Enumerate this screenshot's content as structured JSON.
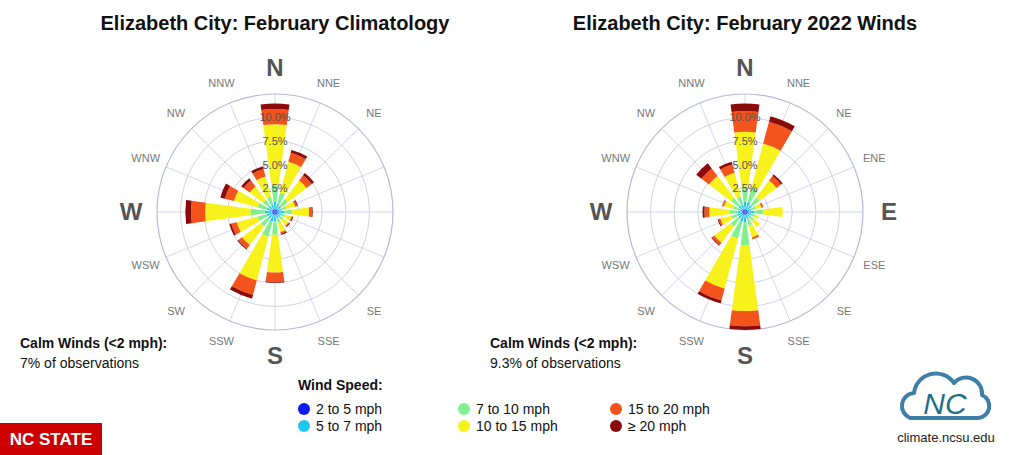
{
  "chart_data": [
    {
      "type": "wind_rose",
      "title": "Elizabeth City: February Climatology",
      "categories": [
        "N",
        "NNE",
        "NE",
        null,
        null,
        null,
        "SE",
        "SSE",
        "S",
        "SSW",
        "SW",
        "WSW",
        "W",
        "WNW",
        "NW",
        "NNW"
      ],
      "ylim": [
        0,
        12.5
      ],
      "yticks": [
        {
          "value": 2.5,
          "label": "2.5%"
        },
        {
          "value": 5,
          "label": "5.0%"
        },
        {
          "value": 7.5,
          "label": "7.5%"
        },
        {
          "value": 10,
          "label": "10.0%"
        }
      ],
      "grid": true,
      "stacked": true,
      "legend": "bottom",
      "legend_title": "Wind Speed:",
      "annotations": [
        "Calm Winds (<2 mph):",
        "7% of observations"
      ],
      "series": [
        {
          "name": "2 to 5 mph",
          "color": "#0a1cf2",
          "values": [
            0.3,
            0.3,
            0.3,
            0.3,
            0.4,
            0.3,
            0.3,
            0.3,
            0.3,
            0.3,
            0.3,
            0.3,
            0.3,
            0.3,
            0.3,
            0.3
          ]
        },
        {
          "name": "5 to 7 mph",
          "color": "#1ec8f0",
          "values": [
            0.8,
            0.6,
            0.5,
            0.4,
            0.6,
            0.4,
            0.4,
            0.4,
            0.7,
            0.8,
            0.6,
            0.6,
            0.8,
            0.6,
            0.5,
            0.5
          ]
        },
        {
          "name": "7 to 10 mph",
          "color": "#80f08e",
          "values": [
            1.7,
            1.2,
            0.9,
            0.5,
            0.8,
            0.4,
            0.4,
            0.5,
            1.4,
            1.6,
            1.0,
            1.0,
            1.5,
            1.0,
            0.8,
            0.9
          ]
        },
        {
          "name": "10 to 15 mph",
          "color": "#f8f21c",
          "values": [
            6.5,
            3.4,
            2.5,
            1.0,
            1.8,
            0.7,
            0.7,
            1.0,
            4.0,
            4.8,
            2.5,
            2.3,
            4.8,
            2.6,
            1.8,
            2.2
          ]
        },
        {
          "name": "15 to 20 mph",
          "color": "#f4531c",
          "values": [
            1.6,
            1.0,
            0.7,
            0.2,
            0.3,
            0.1,
            0.1,
            0.2,
            1.0,
            1.6,
            0.5,
            0.6,
            1.5,
            1.0,
            0.8,
            0.8
          ]
        },
        {
          "name": "≥ 20 mph",
          "color": "#8b0a0a",
          "values": [
            0.6,
            0.3,
            0.3,
            0.1,
            0.1,
            0.1,
            0.1,
            0.1,
            0.1,
            0.4,
            0.1,
            0.2,
            0.6,
            0.5,
            0.3,
            0.3
          ]
        }
      ]
    },
    {
      "type": "wind_rose",
      "title": "Elizabeth City: February 2022 Winds",
      "categories": [
        "N",
        "NNE",
        "NE",
        "ENE",
        "E",
        "ESE",
        "SE",
        "SSE",
        "S",
        "SSW",
        "SW",
        "WSW",
        "W",
        "WNW",
        "NW",
        "NNW"
      ],
      "ylim": [
        0,
        12.5
      ],
      "yticks": [
        {
          "value": 2.5,
          "label": "2.5%"
        },
        {
          "value": 5,
          "label": "5.0%"
        },
        {
          "value": 7.5,
          "label": "7.5%"
        },
        {
          "value": 10,
          "label": "10.0%"
        }
      ],
      "grid": true,
      "stacked": true,
      "annotations": [
        "Calm Winds (<2 mph):",
        "9.3% of observations"
      ],
      "series": [
        {
          "color": "#0a1cf2",
          "values": [
            0.3,
            0.3,
            0.3,
            0.3,
            0.4,
            0.3,
            0.3,
            0.3,
            0.3,
            0.3,
            0.3,
            0.3,
            0.3,
            0.3,
            0.3,
            0.3
          ]
        },
        {
          "color": "#1ec8f0",
          "values": [
            0.8,
            0.8,
            0.6,
            0.4,
            0.6,
            0.4,
            0.4,
            0.4,
            0.8,
            0.8,
            0.6,
            0.5,
            0.5,
            0.4,
            0.6,
            0.5
          ]
        },
        {
          "color": "#80f08e",
          "values": [
            1.6,
            1.6,
            1.0,
            0.5,
            0.9,
            0.4,
            0.5,
            0.8,
            2.4,
            1.8,
            1.0,
            0.7,
            0.8,
            0.6,
            1.0,
            0.9
          ]
        },
        {
          "color": "#f8f21c",
          "values": [
            5.8,
            4.8,
            2.3,
            0.6,
            2.1,
            0.4,
            0.8,
            1.3,
            7.0,
            5.5,
            2.2,
            1.2,
            2.2,
            1.0,
            2.9,
            2.6
          ]
        },
        {
          "color": "#f4531c",
          "values": [
            2.2,
            2.4,
            0.6,
            0.2,
            0,
            0,
            0,
            0.2,
            1.6,
            1.3,
            0.3,
            0.2,
            0.5,
            0.2,
            1.0,
            0.9
          ]
        },
        {
          "color": "#8b0a0a",
          "values": [
            0.8,
            0.6,
            0.2,
            0,
            0,
            0,
            0,
            0,
            0.4,
            0.3,
            0.1,
            0.1,
            0.2,
            0,
            0.7,
            0.3
          ]
        }
      ]
    }
  ],
  "footer": {
    "brand": "NC STATE",
    "logo": "NC",
    "source": "climate.ncsu.edu"
  }
}
